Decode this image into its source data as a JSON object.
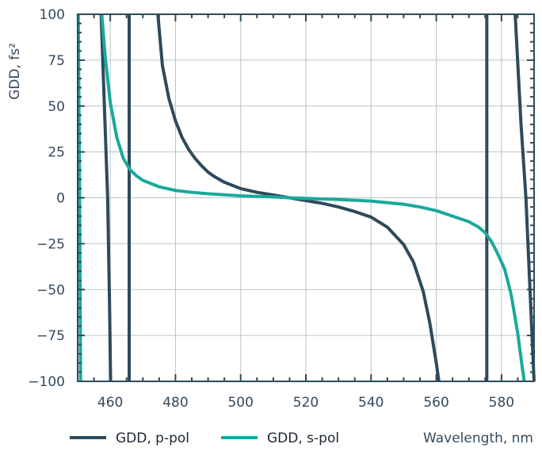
{
  "chart_data": {
    "type": "line",
    "ylabel": "GDD, fs²",
    "xlabel": "Wavelength, nm",
    "xlim": [
      450,
      590
    ],
    "ylim": [
      -100,
      100
    ],
    "x_ticks": [
      460,
      480,
      500,
      520,
      540,
      560,
      580
    ],
    "y_ticks": [
      -100,
      -75,
      -50,
      -25,
      0,
      25,
      50,
      75,
      100
    ],
    "x_tick_labels": [
      "460",
      "480",
      "500",
      "520",
      "540",
      "560",
      "580"
    ],
    "y_tick_labels": [
      "−100",
      "−75",
      "−50",
      "−25",
      "0",
      "25",
      "50",
      "75",
      "100"
    ],
    "grid": true,
    "legend_position": "bottom",
    "series": [
      {
        "name": "GDD, p-pol",
        "color": "#2e4a5c",
        "segments": [
          [
            [
              457.2,
              100
            ],
            [
              458.4,
              40
            ],
            [
              459.2,
              0
            ],
            [
              459.8,
              -60
            ],
            [
              460.1,
              -100
            ]
          ],
          [
            [
              465.8,
              -100
            ],
            [
              465.8,
              100
            ]
          ],
          [
            [
              474.6,
              100
            ],
            [
              476,
              72
            ],
            [
              478,
              54
            ],
            [
              480,
              42
            ],
            [
              482,
              33
            ],
            [
              484,
              26.5
            ],
            [
              486,
              21.5
            ],
            [
              488,
              17.5
            ],
            [
              490,
              14
            ],
            [
              492,
              11.5
            ],
            [
              495,
              8.5
            ],
            [
              500,
              5
            ],
            [
              505,
              3
            ],
            [
              510,
              1.5
            ],
            [
              515,
              0
            ],
            [
              520,
              -1.5
            ],
            [
              525,
              -3
            ],
            [
              530,
              -5
            ],
            [
              535,
              -7.5
            ],
            [
              540,
              -10.5
            ],
            [
              545,
              -16
            ],
            [
              550,
              -25.5
            ],
            [
              553,
              -35
            ],
            [
              556,
              -51
            ],
            [
              558,
              -68
            ],
            [
              560,
              -90
            ],
            [
              560.8,
              -100
            ]
          ],
          [
            [
              575.5,
              -100
            ],
            [
              575.5,
              100
            ]
          ],
          [
            [
              584.2,
              100
            ],
            [
              586,
              40
            ],
            [
              587.5,
              0
            ],
            [
              589,
              -60
            ],
            [
              590,
              -100
            ]
          ]
        ]
      },
      {
        "name": "GDD, s-pol",
        "color": "#1aa99b",
        "segments": [
          [
            [
              450.2,
              100
            ],
            [
              450.6,
              0
            ],
            [
              450.9,
              -100
            ]
          ],
          [
            [
              457.4,
              100
            ],
            [
              458.5,
              76
            ],
            [
              460,
              52
            ],
            [
              462,
              33
            ],
            [
              464,
              21.5
            ],
            [
              466,
              15.5
            ],
            [
              468,
              12
            ],
            [
              470,
              9.5
            ],
            [
              475,
              6
            ],
            [
              480,
              4
            ],
            [
              485,
              3
            ],
            [
              490,
              2.2
            ],
            [
              500,
              1.1
            ],
            [
              510,
              0.5
            ],
            [
              515,
              0
            ],
            [
              520,
              -0.3
            ],
            [
              530,
              -0.9
            ],
            [
              540,
              -1.8
            ],
            [
              550,
              -3.5
            ],
            [
              555,
              -5
            ],
            [
              560,
              -7
            ],
            [
              565,
              -10
            ],
            [
              570,
              -13
            ],
            [
              573,
              -16
            ],
            [
              575,
              -19
            ],
            [
              577,
              -24
            ],
            [
              579,
              -31
            ],
            [
              581,
              -39
            ],
            [
              583,
              -53
            ],
            [
              585,
              -74
            ],
            [
              586.5,
              -94
            ],
            [
              587,
              -100
            ]
          ]
        ]
      }
    ]
  }
}
